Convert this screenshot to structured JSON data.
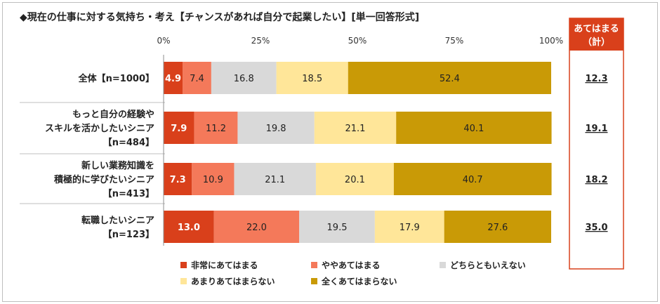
{
  "title": "◆現在の仕事に対する気持ち・考え【チャンスがあれば自分で起業したい】[単一回答形式]",
  "chart_data": {
    "type": "bar",
    "stacked": true,
    "orientation": "horizontal",
    "xlim": [
      0,
      100
    ],
    "xticks": [
      "0%",
      "25%",
      "50%",
      "75%",
      "100%"
    ],
    "categories": [
      [
        "全体【n=1000】"
      ],
      [
        "もっと自分の経験や",
        "スキルを活かしたいシニア",
        "【n=484】"
      ],
      [
        "新しい業務知識を",
        "積極的に学びたいシニア",
        "【n=413】"
      ],
      [
        "転職したいシニア",
        "【n=123】"
      ]
    ],
    "series": [
      {
        "name": "非常にあてはまる",
        "color": "#d9401b",
        "values": [
          4.9,
          7.9,
          7.3,
          13.0
        ]
      },
      {
        "name": "ややあてはまる",
        "color": "#f4795a",
        "values": [
          7.4,
          11.2,
          10.9,
          22.0
        ]
      },
      {
        "name": "どちらともいえない",
        "color": "#d9d9d9",
        "values": [
          16.8,
          19.8,
          21.1,
          19.5
        ]
      },
      {
        "name": "あまりあてはまらない",
        "color": "#ffe699",
        "values": [
          18.5,
          21.1,
          20.1,
          17.9
        ]
      },
      {
        "name": "全くあてはまらない",
        "color": "#c99a06",
        "values": [
          52.4,
          40.1,
          40.7,
          27.6
        ]
      }
    ],
    "value_labels": [
      [
        "4.9",
        "7.4",
        "16.8",
        "18.5",
        "52.4"
      ],
      [
        "7.9",
        "11.2",
        "19.8",
        "21.1",
        "40.1"
      ],
      [
        "7.3",
        "10.9",
        "21.1",
        "20.1",
        "40.7"
      ],
      [
        "13.0",
        "22.0",
        "19.5",
        "17.9",
        "27.6"
      ]
    ],
    "summary": {
      "header": [
        "あてはまる",
        "（計）"
      ],
      "values": [
        "12.3",
        "19.1",
        "18.2",
        "35.0"
      ],
      "accent": "#d9401b"
    }
  }
}
